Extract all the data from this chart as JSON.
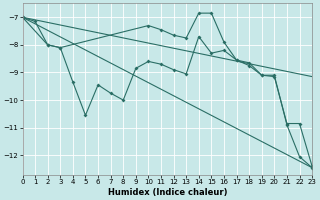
{
  "xlabel": "Humidex (Indice chaleur)",
  "bg_color": "#c8e8e8",
  "grid_color": "#ffffff",
  "line_color": "#2a6e65",
  "xlim": [
    0,
    23
  ],
  "ylim": [
    -12.7,
    -6.5
  ],
  "yticks": [
    -7,
    -8,
    -9,
    -10,
    -11,
    -12
  ],
  "xticks": [
    0,
    1,
    2,
    3,
    4,
    5,
    6,
    7,
    8,
    9,
    10,
    11,
    12,
    13,
    14,
    15,
    16,
    17,
    18,
    19,
    20,
    21,
    22,
    23
  ],
  "series": [
    {
      "x": [
        0,
        1,
        2,
        3,
        4,
        5,
        6,
        7,
        8,
        9,
        10,
        11,
        12,
        13,
        14,
        15,
        16,
        17,
        18,
        19,
        20,
        21,
        22,
        23
      ],
      "y": [
        -7.0,
        -7.15,
        -8.0,
        -8.1,
        -9.35,
        -10.55,
        -9.45,
        -9.75,
        -10.0,
        -8.85,
        -8.6,
        -8.7,
        -8.9,
        -9.05,
        -7.7,
        -8.3,
        -8.2,
        -8.55,
        -8.75,
        -9.1,
        -9.1,
        -10.9,
        -12.05,
        -12.45
      ],
      "marker": true
    },
    {
      "x": [
        0,
        2,
        3,
        10,
        11,
        12,
        13,
        14,
        15,
        16,
        17,
        18,
        19,
        20,
        21,
        22,
        23
      ],
      "y": [
        -7.0,
        -8.0,
        -8.1,
        -7.3,
        -7.45,
        -7.65,
        -7.75,
        -6.85,
        -6.85,
        -7.9,
        -8.55,
        -8.65,
        -9.1,
        -9.15,
        -10.85,
        -10.85,
        -12.4
      ],
      "marker": true
    },
    {
      "x": [
        0,
        23
      ],
      "y": [
        -7.0,
        -9.15
      ],
      "marker": false
    },
    {
      "x": [
        0,
        23
      ],
      "y": [
        -7.0,
        -12.45
      ],
      "marker": false
    }
  ]
}
